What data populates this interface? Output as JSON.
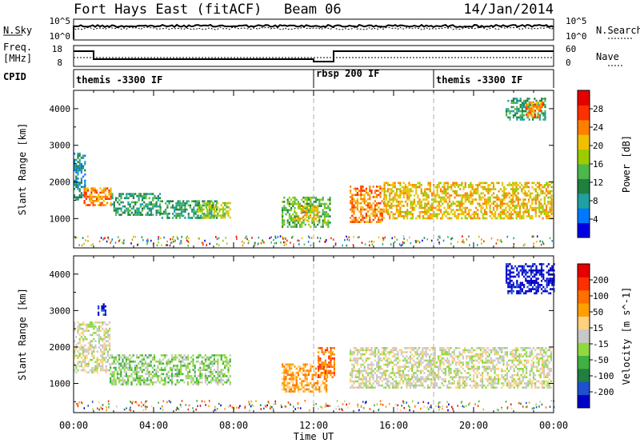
{
  "header": {
    "station": "Fort Hays East (fitACF)",
    "beam": "Beam 06",
    "date": "14/Jan/2014"
  },
  "noise_panel": {
    "left_label": "N.Sky",
    "right_label": "N.Search",
    "left_ticks": [
      "10^5",
      "10^0"
    ],
    "right_ticks": [
      "10^5",
      "10^0"
    ]
  },
  "freq_panel": {
    "left_label_line1": "Freq.",
    "left_label_line2": "[MHz]",
    "right_label": "Nave",
    "left_ticks": [
      "18",
      "8"
    ],
    "right_ticks": [
      "60",
      "0"
    ]
  },
  "cpid_panel": {
    "label": "CPID",
    "segments": [
      {
        "name": "themis -3300 IF",
        "start_hour": 0
      },
      {
        "name": "rbsp 200 IF",
        "start_hour": 12
      },
      {
        "name": "themis -3300 IF",
        "start_hour": 18
      }
    ]
  },
  "time_axis": {
    "label": "Time UT",
    "ticks": [
      "00:00",
      "04:00",
      "08:00",
      "12:00",
      "16:00",
      "20:00",
      "00:00"
    ]
  },
  "chart_data": [
    {
      "type": "heatmap",
      "name": "power",
      "ylabel": "Slant Range [km]",
      "xlim_hours": [
        0,
        24
      ],
      "ylim_km": [
        200,
        4500
      ],
      "yticks": [
        "1000",
        "2000",
        "3000",
        "4000"
      ],
      "colorbar": {
        "label": "Power [dB]",
        "ticks": [
          "28",
          "24",
          "20",
          "16",
          "12",
          "8",
          "4"
        ],
        "colors": [
          "#0000e6",
          "#0078ff",
          "#20a0a0",
          "#208040",
          "#4cb84c",
          "#9ccc00",
          "#f0c000",
          "#ff8000",
          "#ff3000",
          "#e60000"
        ]
      },
      "echo_regions": [
        {
          "t0": 0.0,
          "t1": 0.6,
          "r0": 1500,
          "r1": 2800,
          "level": 2
        },
        {
          "t0": 0.5,
          "t1": 1.9,
          "r0": 1350,
          "r1": 1850,
          "level": 7
        },
        {
          "t0": 1.9,
          "t1": 4.3,
          "r0": 1100,
          "r1": 1700,
          "level": 3
        },
        {
          "t0": 4.3,
          "t1": 7.2,
          "r0": 1000,
          "r1": 1500,
          "level": 3
        },
        {
          "t0": 6.2,
          "t1": 7.8,
          "r0": 1050,
          "r1": 1450,
          "level": 5
        },
        {
          "t0": 10.4,
          "t1": 12.8,
          "r0": 800,
          "r1": 1600,
          "level": 4
        },
        {
          "t0": 11.0,
          "t1": 12.2,
          "r0": 900,
          "r1": 1350,
          "level": 6
        },
        {
          "t0": 13.8,
          "t1": 15.5,
          "r0": 900,
          "r1": 1900,
          "level": 7
        },
        {
          "t0": 15.5,
          "t1": 23.9,
          "r0": 1000,
          "r1": 2000,
          "level": 6
        },
        {
          "t0": 21.6,
          "t1": 23.6,
          "r0": 3700,
          "r1": 4300,
          "level": 3
        },
        {
          "t0": 22.6,
          "t1": 23.4,
          "r0": 3800,
          "r1": 4200,
          "level": 7
        }
      ]
    },
    {
      "type": "heatmap",
      "name": "velocity",
      "ylabel": "Slant Range [km]",
      "xlim_hours": [
        0,
        24
      ],
      "ylim_km": [
        200,
        4500
      ],
      "yticks": [
        "1000",
        "2000",
        "3000",
        "4000"
      ],
      "colorbar": {
        "label": "Velocity [m s^-1]",
        "ticks": [
          "200",
          "100",
          "50",
          "15",
          "-15",
          "-50",
          "-100",
          "-200"
        ],
        "colors": [
          "#0000c8",
          "#1e50d0",
          "#208040",
          "#40b040",
          "#90d840",
          "#c8c8c8",
          "#ffd080",
          "#ffa000",
          "#ff7000",
          "#ff3000",
          "#e60000"
        ]
      },
      "echo_regions": [
        {
          "t0": 0.0,
          "t1": 1.8,
          "r0": 1300,
          "r1": 2700,
          "level": 5
        },
        {
          "t0": 1.2,
          "t1": 1.6,
          "r0": 2900,
          "r1": 3200,
          "level": 0
        },
        {
          "t0": 1.8,
          "t1": 7.8,
          "r0": 1000,
          "r1": 1800,
          "level": 4
        },
        {
          "t0": 10.4,
          "t1": 12.6,
          "r0": 800,
          "r1": 1550,
          "level": 7
        },
        {
          "t0": 12.2,
          "t1": 13.0,
          "r0": 1200,
          "r1": 2000,
          "level": 8
        },
        {
          "t0": 13.8,
          "t1": 23.9,
          "r0": 900,
          "r1": 2000,
          "level": 5
        },
        {
          "t0": 21.6,
          "t1": 24.0,
          "r0": 3500,
          "r1": 4300,
          "level": 0
        }
      ]
    }
  ]
}
